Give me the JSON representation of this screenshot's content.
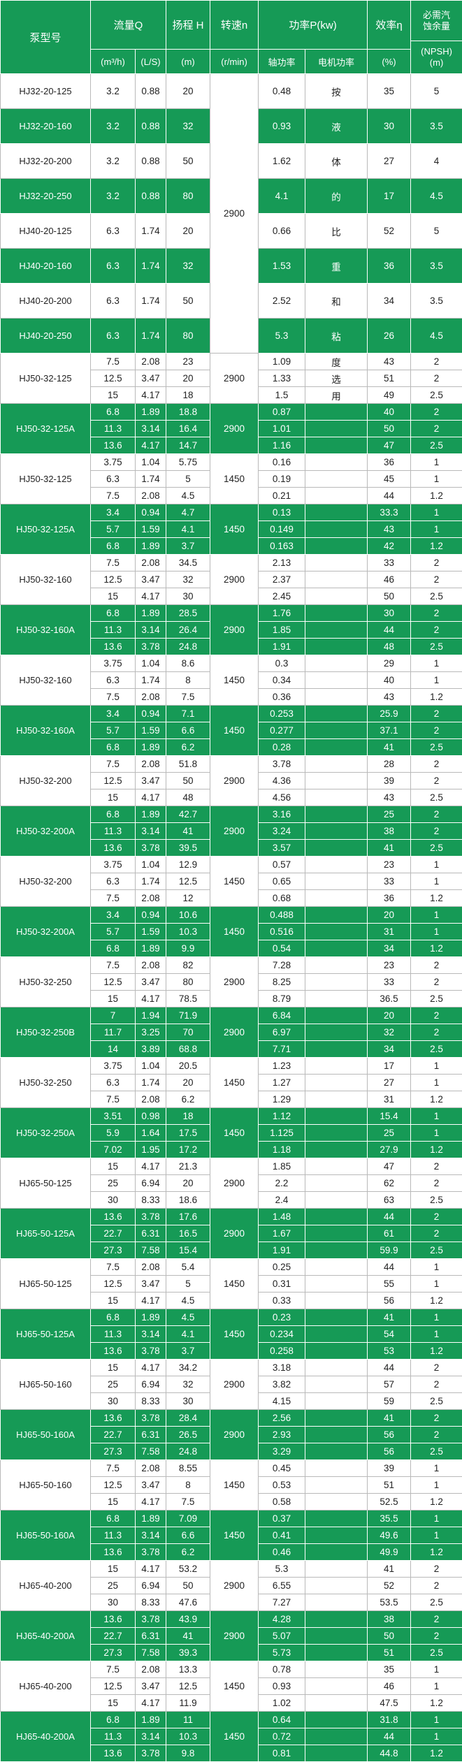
{
  "colors": {
    "green": "#169a56",
    "grid": "#b9b9b9",
    "text": "#222222"
  },
  "table": {
    "header": {
      "model": "泵型号",
      "flow": "流量Q",
      "head": "扬程 H",
      "speed": "转速n",
      "power": "功率P(kw)",
      "efficiency": "效率η",
      "npsh_top": "必需汽蚀余量",
      "npsh_unit": "(NPSH) (m)",
      "sub": [
        "(m³/h)",
        "(L/S)",
        "(m)",
        "(r/min)",
        "轴功率",
        "电机功率",
        "(%)"
      ]
    },
    "single_section": {
      "speed": "2900",
      "rows": [
        {
          "model": "HJ32-20-125",
          "shade": "white",
          "flow_m3h": "3.2",
          "flow_ls": "0.88",
          "head": "20",
          "shaft": "0.48",
          "motor": "按",
          "eff": "35",
          "npsh": "5"
        },
        {
          "model": "HJ32-20-160",
          "shade": "green",
          "flow_m3h": "3.2",
          "flow_ls": "0.88",
          "head": "32",
          "shaft": "0.93",
          "motor": "液",
          "eff": "30",
          "npsh": "3.5"
        },
        {
          "model": "HJ32-20-200",
          "shade": "white",
          "flow_m3h": "3.2",
          "flow_ls": "0.88",
          "head": "50",
          "shaft": "1.62",
          "motor": "体",
          "eff": "27",
          "npsh": "4"
        },
        {
          "model": "HJ32-20-250",
          "shade": "green",
          "flow_m3h": "3.2",
          "flow_ls": "0.88",
          "head": "80",
          "shaft": "4.1",
          "motor": "的",
          "eff": "17",
          "npsh": "4.5"
        },
        {
          "model": "HJ40-20-125",
          "shade": "white",
          "flow_m3h": "6.3",
          "flow_ls": "1.74",
          "head": "20",
          "shaft": "0.66",
          "motor": "比",
          "eff": "52",
          "npsh": "5"
        },
        {
          "model": "HJ40-20-160",
          "shade": "green",
          "flow_m3h": "6.3",
          "flow_ls": "1.74",
          "head": "32",
          "shaft": "1.53",
          "motor": "重",
          "eff": "36",
          "npsh": "3.5"
        },
        {
          "model": "HJ40-20-200",
          "shade": "white",
          "flow_m3h": "6.3",
          "flow_ls": "1.74",
          "head": "50",
          "shaft": "2.52",
          "motor": "和",
          "eff": "34",
          "npsh": "3.5"
        },
        {
          "model": "HJ40-20-250",
          "shade": "green",
          "flow_m3h": "6.3",
          "flow_ls": "1.74",
          "head": "80",
          "shaft": "5.3",
          "motor": "粘",
          "eff": "26",
          "npsh": "4.5"
        }
      ]
    },
    "groups": [
      {
        "model": "HJ50-32-125",
        "speed": "2900",
        "shade": "white",
        "motor_note": [
          "度",
          "选",
          "用"
        ],
        "rows": [
          [
            "7.5",
            "2.08",
            "23",
            "1.09",
            "43",
            "2"
          ],
          [
            "12.5",
            "3.47",
            "20",
            "1.33",
            "51",
            "2"
          ],
          [
            "15",
            "4.17",
            "18",
            "1.5",
            "49",
            "2.5"
          ]
        ]
      },
      {
        "model": "HJ50-32-125A",
        "speed": "2900",
        "shade": "green",
        "rows": [
          [
            "6.8",
            "1.89",
            "18.8",
            "0.87",
            "40",
            "2"
          ],
          [
            "11.3",
            "3.14",
            "16.4",
            "1.01",
            "50",
            "2"
          ],
          [
            "13.6",
            "4.17",
            "14.7",
            "1.16",
            "47",
            "2.5"
          ]
        ]
      },
      {
        "model": "HJ50-32-125",
        "speed": "1450",
        "shade": "white",
        "rows": [
          [
            "3.75",
            "1.04",
            "5.75",
            "0.16",
            "36",
            "1"
          ],
          [
            "6.3",
            "1.74",
            "5",
            "0.19",
            "45",
            "1"
          ],
          [
            "7.5",
            "2.08",
            "4.5",
            "0.21",
            "44",
            "1.2"
          ]
        ]
      },
      {
        "model": "HJ50-32-125A",
        "speed": "1450",
        "shade": "green",
        "rows": [
          [
            "3.4",
            "0.94",
            "4.7",
            "0.13",
            "33.3",
            "1"
          ],
          [
            "5.7",
            "1.59",
            "4.1",
            "0.149",
            "43",
            "1"
          ],
          [
            "6.8",
            "1.89",
            "3.7",
            "0.163",
            "42",
            "1.2"
          ]
        ]
      },
      {
        "model": "HJ50-32-160",
        "speed": "2900",
        "shade": "white",
        "rows": [
          [
            "7.5",
            "2.08",
            "34.5",
            "2.13",
            "33",
            "2"
          ],
          [
            "12.5",
            "3.47",
            "32",
            "2.37",
            "46",
            "2"
          ],
          [
            "15",
            "4.17",
            "30",
            "2.45",
            "50",
            "2.5"
          ]
        ]
      },
      {
        "model": "HJ50-32-160A",
        "speed": "2900",
        "shade": "green",
        "rows": [
          [
            "6.8",
            "1.89",
            "28.5",
            "1.76",
            "30",
            "2"
          ],
          [
            "11.3",
            "3.14",
            "26.4",
            "1.85",
            "44",
            "2"
          ],
          [
            "13.6",
            "3.78",
            "24.8",
            "1.91",
            "48",
            "2.5"
          ]
        ]
      },
      {
        "model": "HJ50-32-160",
        "speed": "1450",
        "shade": "white",
        "rows": [
          [
            "3.75",
            "1.04",
            "8.6",
            "0.3",
            "29",
            "1"
          ],
          [
            "6.3",
            "1.74",
            "8",
            "0.34",
            "40",
            "1"
          ],
          [
            "7.5",
            "2.08",
            "7.5",
            "0.36",
            "43",
            "1.2"
          ]
        ]
      },
      {
        "model": "HJ50-32-160A",
        "speed": "1450",
        "shade": "green",
        "rows": [
          [
            "3.4",
            "0.94",
            "7.1",
            "0.253",
            "25.9",
            "2"
          ],
          [
            "5.7",
            "1.59",
            "6.6",
            "0.277",
            "37.1",
            "2"
          ],
          [
            "6.8",
            "1.89",
            "6.2",
            "0.28",
            "41",
            "2.5"
          ]
        ]
      },
      {
        "model": "HJ50-32-200",
        "speed": "2900",
        "shade": "white",
        "rows": [
          [
            "7.5",
            "2.08",
            "51.8",
            "3.78",
            "28",
            "2"
          ],
          [
            "12.5",
            "3.47",
            "50",
            "4.36",
            "39",
            "2"
          ],
          [
            "15",
            "4.17",
            "48",
            "4.56",
            "43",
            "2.5"
          ]
        ]
      },
      {
        "model": "HJ50-32-200A",
        "speed": "2900",
        "shade": "green",
        "rows": [
          [
            "6.8",
            "1.89",
            "42.7",
            "3.16",
            "25",
            "2"
          ],
          [
            "11.3",
            "3.14",
            "41",
            "3.24",
            "38",
            "2"
          ],
          [
            "13.6",
            "3.78",
            "39.5",
            "3.57",
            "41",
            "2.5"
          ]
        ]
      },
      {
        "model": "HJ50-32-200",
        "speed": "1450",
        "shade": "white",
        "rows": [
          [
            "3.75",
            "1.04",
            "12.9",
            "0.57",
            "23",
            "1"
          ],
          [
            "6.3",
            "1.74",
            "12.5",
            "0.65",
            "33",
            "1"
          ],
          [
            "7.5",
            "2.08",
            "12",
            "0.68",
            "36",
            "1.2"
          ]
        ]
      },
      {
        "model": "HJ50-32-200A",
        "speed": "1450",
        "shade": "green",
        "rows": [
          [
            "3.4",
            "0.94",
            "10.6",
            "0.488",
            "20",
            "1"
          ],
          [
            "5.7",
            "1.59",
            "10.3",
            "0.516",
            "31",
            "1"
          ],
          [
            "6.8",
            "1.89",
            "9.9",
            "0.54",
            "34",
            "1.2"
          ]
        ]
      },
      {
        "model": "HJ50-32-250",
        "speed": "2900",
        "shade": "white",
        "rows": [
          [
            "7.5",
            "2.08",
            "82",
            "7.28",
            "23",
            "2"
          ],
          [
            "12.5",
            "3.47",
            "80",
            "8.25",
            "33",
            "2"
          ],
          [
            "15",
            "4.17",
            "78.5",
            "8.79",
            "36.5",
            "2.5"
          ]
        ]
      },
      {
        "model": "HJ50-32-250B",
        "speed": "2900",
        "shade": "green",
        "rows": [
          [
            "7",
            "1.94",
            "71.9",
            "6.84",
            "20",
            "2"
          ],
          [
            "11.7",
            "3.25",
            "70",
            "6.97",
            "32",
            "2"
          ],
          [
            "14",
            "3.89",
            "68.8",
            "7.71",
            "34",
            "2.5"
          ]
        ]
      },
      {
        "model": "HJ50-32-250",
        "speed": "1450",
        "shade": "white",
        "rows": [
          [
            "3.75",
            "1.04",
            "20.5",
            "1.23",
            "17",
            "1"
          ],
          [
            "6.3",
            "1.74",
            "20",
            "1.27",
            "27",
            "1"
          ],
          [
            "7.5",
            "2.08",
            "6.2",
            "1.29",
            "31",
            "1.2"
          ]
        ]
      },
      {
        "model": "HJ50-32-250A",
        "speed": "1450",
        "shade": "green",
        "rows": [
          [
            "3.51",
            "0.98",
            "18",
            "1.12",
            "15.4",
            "1"
          ],
          [
            "5.9",
            "1.64",
            "17.5",
            "1.125",
            "25",
            "1"
          ],
          [
            "7.02",
            "1.95",
            "17.2",
            "1.18",
            "27.9",
            "1.2"
          ]
        ]
      },
      {
        "model": "HJ65-50-125",
        "speed": "2900",
        "shade": "white",
        "rows": [
          [
            "15",
            "4.17",
            "21.3",
            "1.85",
            "47",
            "2"
          ],
          [
            "25",
            "6.94",
            "20",
            "2.2",
            "62",
            "2"
          ],
          [
            "30",
            "8.33",
            "18.6",
            "2.4",
            "63",
            "2.5"
          ]
        ]
      },
      {
        "model": "HJ65-50-125A",
        "speed": "2900",
        "shade": "green",
        "rows": [
          [
            "13.6",
            "3.78",
            "17.6",
            "1.48",
            "44",
            "2"
          ],
          [
            "22.7",
            "6.31",
            "16.5",
            "1.67",
            "61",
            "2"
          ],
          [
            "27.3",
            "7.58",
            "15.4",
            "1.91",
            "59.9",
            "2.5"
          ]
        ]
      },
      {
        "model": "HJ65-50-125",
        "speed": "1450",
        "shade": "white",
        "rows": [
          [
            "7.5",
            "2.08",
            "5.4",
            "0.25",
            "44",
            "1"
          ],
          [
            "12.5",
            "3.47",
            "5",
            "0.31",
            "55",
            "1"
          ],
          [
            "15",
            "4.17",
            "4.5",
            "0.33",
            "56",
            "1.2"
          ]
        ]
      },
      {
        "model": "HJ65-50-125A",
        "speed": "1450",
        "shade": "green",
        "rows": [
          [
            "6.8",
            "1.89",
            "4.5",
            "0.23",
            "41",
            "1"
          ],
          [
            "11.3",
            "3.14",
            "4.1",
            "0.234",
            "54",
            "1"
          ],
          [
            "13.6",
            "3.78",
            "3.7",
            "0.258",
            "53",
            "1.2"
          ]
        ]
      },
      {
        "model": "HJ65-50-160",
        "speed": "2900",
        "shade": "white",
        "rows": [
          [
            "15",
            "4.17",
            "34.2",
            "3.18",
            "44",
            "2"
          ],
          [
            "25",
            "6.94",
            "32",
            "3.82",
            "57",
            "2"
          ],
          [
            "30",
            "8.33",
            "30",
            "4.15",
            "59",
            "2.5"
          ]
        ]
      },
      {
        "model": "HJ65-50-160A",
        "speed": "2900",
        "shade": "green",
        "rows": [
          [
            "13.6",
            "3.78",
            "28.4",
            "2.56",
            "41",
            "2"
          ],
          [
            "22.7",
            "6.31",
            "26.5",
            "2.93",
            "56",
            "2"
          ],
          [
            "27.3",
            "7.58",
            "24.8",
            "3.29",
            "56",
            "2.5"
          ]
        ]
      },
      {
        "model": "HJ65-50-160",
        "speed": "1450",
        "shade": "white",
        "rows": [
          [
            "7.5",
            "2.08",
            "8.55",
            "0.45",
            "39",
            "1"
          ],
          [
            "12.5",
            "3.47",
            "8",
            "0.53",
            "51",
            "1"
          ],
          [
            "15",
            "4.17",
            "7.5",
            "0.58",
            "52.5",
            "1.2"
          ]
        ]
      },
      {
        "model": "HJ65-50-160A",
        "speed": "1450",
        "shade": "green",
        "rows": [
          [
            "6.8",
            "1.89",
            "7.09",
            "0.37",
            "35.5",
            "1"
          ],
          [
            "11.3",
            "3.14",
            "6.6",
            "0.41",
            "49.6",
            "1"
          ],
          [
            "13.6",
            "3.78",
            "6.2",
            "0.46",
            "49.9",
            "1.2"
          ]
        ]
      },
      {
        "model": "HJ65-40-200",
        "speed": "2900",
        "shade": "white",
        "rows": [
          [
            "15",
            "4.17",
            "53.2",
            "5.3",
            "41",
            "2"
          ],
          [
            "25",
            "6.94",
            "50",
            "6.55",
            "52",
            "2"
          ],
          [
            "30",
            "8.33",
            "47.6",
            "7.27",
            "53.5",
            "2.5"
          ]
        ]
      },
      {
        "model": "HJ65-40-200A",
        "speed": "2900",
        "shade": "green",
        "rows": [
          [
            "13.6",
            "3.78",
            "43.9",
            "4.28",
            "38",
            "2"
          ],
          [
            "22.7",
            "6.31",
            "41",
            "5.07",
            "50",
            "2"
          ],
          [
            "27.3",
            "7.58",
            "39.3",
            "5.73",
            "51",
            "2.5"
          ]
        ]
      },
      {
        "model": "HJ65-40-200",
        "speed": "1450",
        "shade": "white",
        "rows": [
          [
            "7.5",
            "2.08",
            "13.3",
            "0.78",
            "35",
            "1"
          ],
          [
            "12.5",
            "3.47",
            "12.5",
            "0.93",
            "46",
            "1"
          ],
          [
            "15",
            "4.17",
            "11.9",
            "1.02",
            "47.5",
            "1.2"
          ]
        ]
      },
      {
        "model": "HJ65-40-200A",
        "speed": "1450",
        "shade": "green",
        "rows": [
          [
            "6.8",
            "1.89",
            "11",
            "0.64",
            "31.8",
            "1"
          ],
          [
            "11.3",
            "3.14",
            "10.3",
            "0.72",
            "44",
            "1"
          ],
          [
            "13.6",
            "3.78",
            "9.8",
            "0.81",
            "44.8",
            "1.2"
          ]
        ]
      }
    ]
  }
}
